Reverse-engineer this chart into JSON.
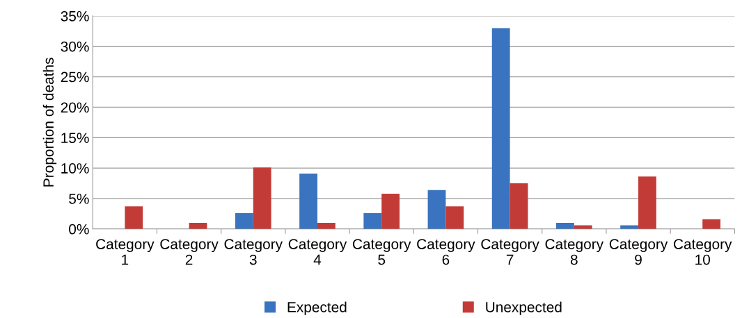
{
  "chart_data": {
    "type": "bar",
    "ylabel": "Proportion of deaths",
    "categories": [
      "Category\n1",
      "Category\n2",
      "Category\n3",
      "Category\n4",
      "Category\n5",
      "Category\n6",
      "Category\n7",
      "Category\n8",
      "Category\n9",
      "Category\n10"
    ],
    "series": [
      {
        "name": "Expected",
        "color": "#3a73bf",
        "values": [
          null,
          null,
          2.6,
          9.1,
          2.6,
          6.4,
          33.0,
          1.0,
          0.6,
          null
        ]
      },
      {
        "name": "Unexpected",
        "color": "#c33b37",
        "values": [
          3.7,
          1.0,
          10.1,
          1.0,
          5.8,
          3.7,
          7.5,
          0.6,
          8.6,
          1.6
        ]
      }
    ],
    "ylim": [
      0,
      35
    ],
    "yticks": [
      {
        "value": 0,
        "label": "0%"
      },
      {
        "value": 5,
        "label": "5%"
      },
      {
        "value": 10,
        "label": "10%"
      },
      {
        "value": 15,
        "label": "15%"
      },
      {
        "value": 20,
        "label": "20%"
      },
      {
        "value": 25,
        "label": "25%"
      },
      {
        "value": 30,
        "label": "30%"
      },
      {
        "value": 35,
        "label": "35%"
      }
    ],
    "grid": "y",
    "legend": "bottom"
  }
}
